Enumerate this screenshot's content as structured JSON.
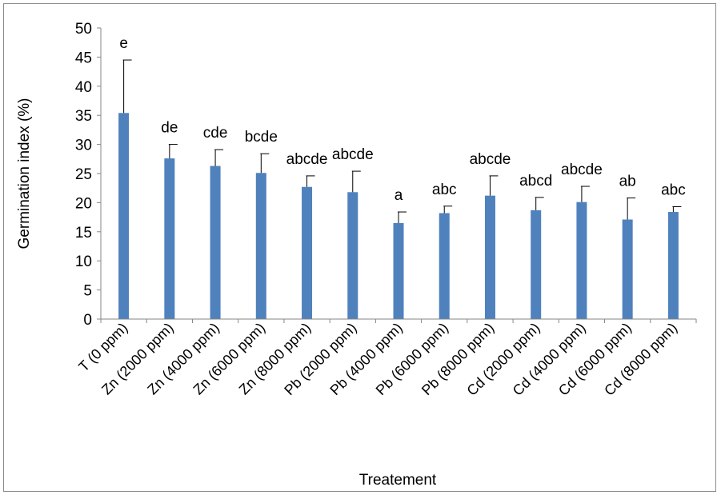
{
  "chart_data": {
    "type": "bar",
    "title": "",
    "xlabel": "Treatement",
    "ylabel": "Germination index (%)",
    "ylim": [
      0,
      50
    ],
    "yticks": [
      0,
      5,
      10,
      15,
      20,
      25,
      30,
      35,
      40,
      45,
      50
    ],
    "grid": false,
    "legend": "none",
    "bar_color": "#4f81bd",
    "error_bar_color": "#000000",
    "categories": [
      "T (0 ppm)",
      "Zn (2000 ppm)",
      "Zn (4000 ppm)",
      "Zn (6000 ppm)",
      "Zn (8000 ppm)",
      "Pb (2000 ppm)",
      "Pb (4000 ppm)",
      "Pb (6000 ppm)",
      "Pb (8000 ppm)",
      "Cd (2000 ppm)",
      "Cd (4000 ppm)",
      "Cd (6000 ppm)",
      "Cd (8000 ppm)"
    ],
    "values": [
      35.4,
      27.6,
      26.3,
      25.1,
      22.7,
      21.8,
      16.5,
      18.2,
      21.2,
      18.7,
      20.1,
      17.1,
      18.4
    ],
    "error_upper": [
      44.5,
      30.0,
      29.1,
      28.4,
      24.6,
      25.4,
      18.4,
      19.4,
      24.6,
      20.9,
      22.8,
      20.8,
      19.3
    ],
    "significance_letters": [
      "e",
      "de",
      "cde",
      "bcde",
      "abcde",
      "abcde",
      "a",
      "abc",
      "abcde",
      "abcd",
      "abcde",
      "ab",
      "abc"
    ]
  }
}
